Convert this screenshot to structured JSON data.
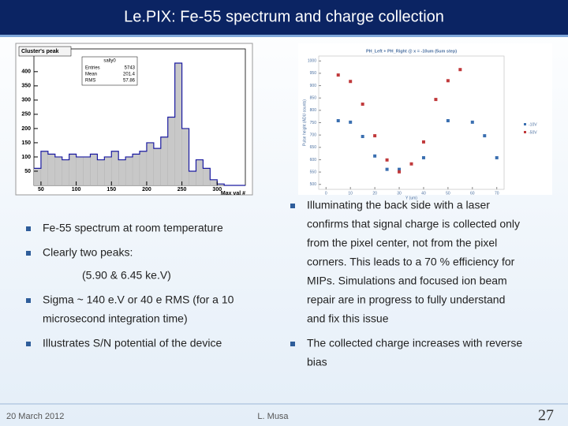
{
  "header": {
    "title": "Le.PIX: Fe-55 spectrum and charge collection"
  },
  "figures": {
    "histogram": {
      "type": "histogram",
      "title": "Cluster's peak",
      "stats": {
        "name": "sally0",
        "rows": [
          [
            "Entries",
            "5743"
          ],
          [
            "Mean",
            "201.4"
          ],
          [
            "RMS",
            "57.86"
          ]
        ]
      },
      "x_label": "Max val #",
      "bins": [
        40,
        50,
        60,
        70,
        80,
        90,
        100,
        110,
        120,
        130,
        140,
        150,
        160,
        170,
        180,
        190,
        200,
        210,
        220,
        230,
        240,
        250,
        260,
        270,
        280,
        290,
        300,
        310,
        320,
        330,
        340
      ],
      "values": [
        60,
        120,
        110,
        100,
        90,
        110,
        100,
        100,
        110,
        90,
        100,
        120,
        90,
        100,
        110,
        120,
        150,
        130,
        170,
        240,
        430,
        200,
        50,
        90,
        60,
        20,
        5,
        0,
        0,
        0
      ],
      "color": "#c8c8c8",
      "line_color": "#1a1aa0",
      "xlim": [
        40,
        340
      ],
      "xticks": [
        50,
        100,
        150,
        200,
        250,
        300
      ],
      "ylim": [
        0,
        480
      ],
      "yticks": [
        50,
        100,
        150,
        200,
        250,
        300,
        350,
        400
      ]
    },
    "scatter": {
      "type": "scatter",
      "title": "PH_Left + PH_Right @ x = -10um (5um step)",
      "x_label": "Y (um)",
      "y_label": "Pulse height (ADU counts)",
      "xlim": [
        -3,
        73
      ],
      "xticks": [
        0,
        10,
        20,
        30,
        40,
        50,
        60,
        70
      ],
      "ylim": [
        480,
        1020
      ],
      "yticks": [
        500,
        550,
        600,
        650,
        700,
        750,
        800,
        850,
        900,
        950,
        1000
      ],
      "series": [
        {
          "name": "-10V",
          "color": "#3a6fb0",
          "x": [
            5,
            10,
            15,
            20,
            25,
            30,
            40,
            50,
            60,
            65,
            70
          ],
          "values": [
            758,
            752,
            694,
            615,
            561,
            561,
            608,
            758,
            752,
            697,
            608
          ]
        },
        {
          "name": "-50V",
          "color": "#c0393b",
          "x": [
            5,
            10,
            15,
            20,
            25,
            30,
            35,
            40,
            45,
            50,
            55
          ],
          "values": [
            943,
            917,
            825,
            697,
            599,
            551,
            583,
            672,
            844,
            920,
            965
          ]
        }
      ]
    }
  },
  "left_bullets": [
    {
      "lines": [
        "Fe-55 spectrum at room temperature"
      ]
    },
    {
      "lines": [
        "Clearly two peaks:"
      ],
      "note": "(5.90 & 6.45 ke.V)"
    },
    {
      "lines": [
        "Sigma ~ 140 e.V or 40 e RMS (for a 10",
        "microsecond integration time)"
      ]
    },
    {
      "lines": [
        "Illustrates S/N potential of the device"
      ]
    }
  ],
  "right_bullets": [
    {
      "lines": [
        "Illuminating the back side with a laser",
        "confirms that signal charge is collected only",
        "from the pixel center, not from the pixel",
        "corners. This leads to a 70 % efficiency for",
        "MIPs. Simulations and focused ion beam",
        "repair are in progress to fully understand",
        "and fix this issue"
      ]
    },
    {
      "lines": [
        "The collected charge increases with reverse",
        "bias"
      ]
    }
  ],
  "footer": {
    "date": "20 March 2012",
    "author": "L. Musa",
    "page": 27
  }
}
